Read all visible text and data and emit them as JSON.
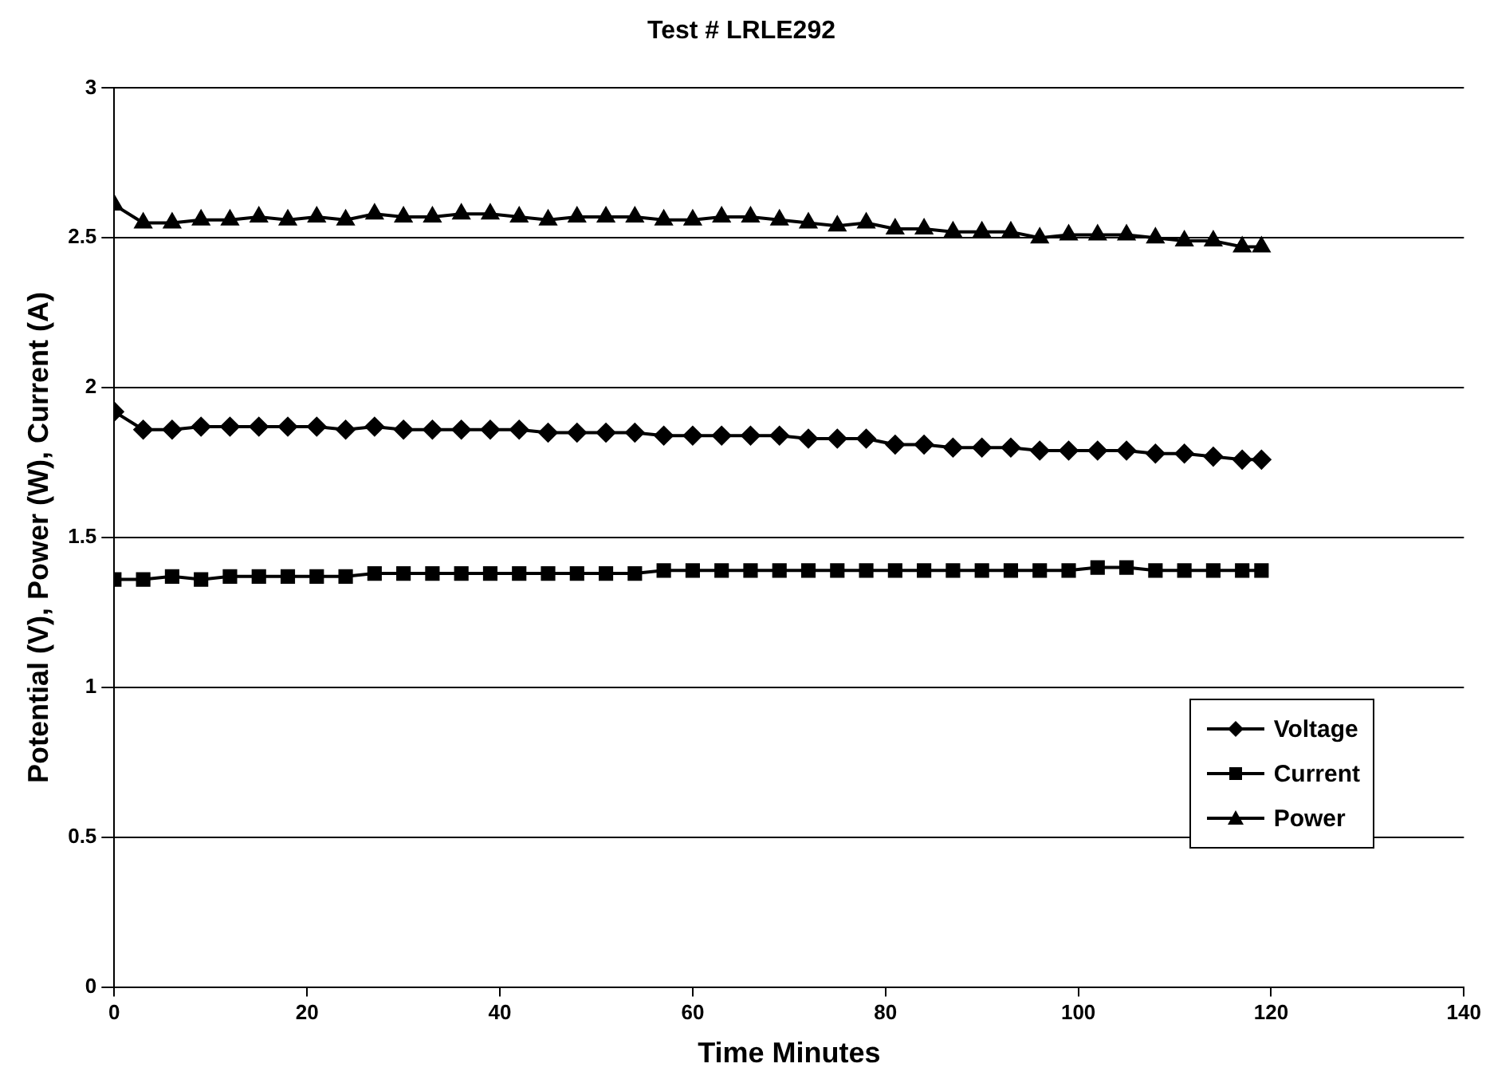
{
  "chart_data": {
    "type": "line",
    "title": "Test # LRLE292",
    "xlabel": "Time Minutes",
    "ylabel": "Potential (V), Power (W), Current (A)",
    "x": [
      0,
      3,
      6,
      9,
      12,
      15,
      18,
      21,
      24,
      27,
      30,
      33,
      36,
      39,
      42,
      45,
      48,
      51,
      54,
      57,
      60,
      63,
      66,
      69,
      72,
      75,
      78,
      81,
      84,
      87,
      90,
      93,
      96,
      99,
      102,
      105,
      108,
      111,
      114,
      117,
      119
    ],
    "series": [
      {
        "name": "Voltage",
        "color": "#000000",
        "marker": "diamond",
        "values": [
          1.92,
          1.86,
          1.86,
          1.87,
          1.87,
          1.87,
          1.87,
          1.87,
          1.86,
          1.87,
          1.86,
          1.86,
          1.86,
          1.86,
          1.86,
          1.85,
          1.85,
          1.85,
          1.85,
          1.84,
          1.84,
          1.84,
          1.84,
          1.84,
          1.83,
          1.83,
          1.83,
          1.81,
          1.81,
          1.8,
          1.8,
          1.8,
          1.79,
          1.79,
          1.79,
          1.79,
          1.78,
          1.78,
          1.77,
          1.76,
          1.76
        ]
      },
      {
        "name": "Current",
        "color": "#000000",
        "marker": "square",
        "values": [
          1.36,
          1.36,
          1.37,
          1.36,
          1.37,
          1.37,
          1.37,
          1.37,
          1.37,
          1.38,
          1.38,
          1.38,
          1.38,
          1.38,
          1.38,
          1.38,
          1.38,
          1.38,
          1.38,
          1.39,
          1.39,
          1.39,
          1.39,
          1.39,
          1.39,
          1.39,
          1.39,
          1.39,
          1.39,
          1.39,
          1.39,
          1.39,
          1.39,
          1.39,
          1.4,
          1.4,
          1.39,
          1.39,
          1.39,
          1.39,
          1.39
        ]
      },
      {
        "name": "Power",
        "color": "#000000",
        "marker": "triangle",
        "values": [
          2.61,
          2.55,
          2.55,
          2.56,
          2.56,
          2.57,
          2.56,
          2.57,
          2.56,
          2.58,
          2.57,
          2.57,
          2.58,
          2.58,
          2.57,
          2.56,
          2.57,
          2.57,
          2.57,
          2.56,
          2.56,
          2.57,
          2.57,
          2.56,
          2.55,
          2.54,
          2.55,
          2.53,
          2.53,
          2.52,
          2.52,
          2.52,
          2.5,
          2.51,
          2.51,
          2.51,
          2.5,
          2.49,
          2.49,
          2.47,
          2.47
        ]
      }
    ],
    "xlim": [
      0,
      140
    ],
    "xticks": [
      0,
      20,
      40,
      60,
      80,
      100,
      120,
      140
    ],
    "ylim": [
      0,
      3
    ],
    "yticks": [
      0,
      0.5,
      1,
      1.5,
      2,
      2.5,
      3
    ],
    "grid": "y",
    "legend": "bottom right",
    "line_style": "solid"
  }
}
